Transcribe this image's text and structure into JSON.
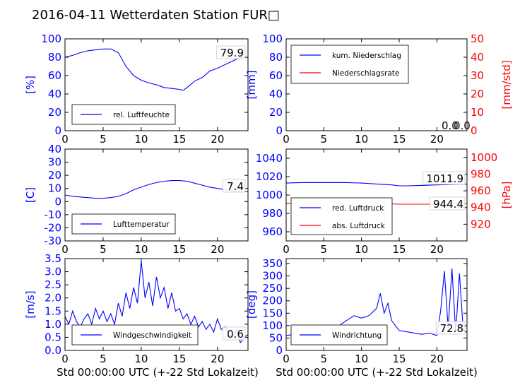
{
  "title": "2016-04-11 Wetterdaten Station FUR□",
  "xlabel": "Std 00:00:00 UTC (+-22 Std Lokalzeit)",
  "colors": {
    "blue": "#0000ff",
    "red": "#ff0000",
    "black": "#000000"
  },
  "chart_data": [
    {
      "type": "line",
      "ylabel": "[%]",
      "xlim": [
        0,
        24
      ],
      "ylim": [
        0,
        100
      ],
      "xticks": [
        0,
        5,
        10,
        15,
        20
      ],
      "yticks": [
        0,
        20,
        40,
        60,
        80,
        100
      ],
      "legend": [
        "rel. Luftfeuchte"
      ],
      "last_value_label": "79.9",
      "series": [
        {
          "name": "rel. Luftfeuchte",
          "color": "#0000ff",
          "x": [
            0,
            1,
            2,
            3,
            4,
            5,
            6,
            7,
            8,
            9,
            10,
            11,
            12,
            13,
            14,
            15,
            15.5,
            16,
            17,
            18,
            19,
            20,
            21,
            22,
            23,
            24
          ],
          "y": [
            80,
            82,
            85,
            87,
            88,
            89,
            89,
            85,
            70,
            60,
            55,
            52,
            50,
            47,
            46,
            45,
            44,
            47,
            54,
            58,
            65,
            68,
            72,
            76,
            80,
            79.9
          ]
        }
      ]
    },
    {
      "type": "line",
      "ylabel": "[mm]",
      "y2label": "[mm/std]",
      "xlim": [
        0,
        24
      ],
      "ylim": [
        0,
        100
      ],
      "y2lim": [
        0,
        50
      ],
      "xticks": [
        0,
        5,
        10,
        15,
        20
      ],
      "yticks": [
        0,
        20,
        40,
        60,
        80,
        100
      ],
      "y2ticks": [
        0,
        10,
        20,
        30,
        40,
        50
      ],
      "legend": [
        "kum. Niederschlag",
        "Niederschlagsrate"
      ],
      "value_labels": [
        "0.0",
        "0.0"
      ],
      "series": [
        {
          "name": "kum. Niederschlag",
          "color": "#0000ff",
          "x": [
            0,
            24
          ],
          "y": [
            0,
            0
          ]
        },
        {
          "name": "Niederschlagsrate",
          "color": "#ff0000",
          "axis": "y2",
          "x": [
            0,
            24
          ],
          "y": [
            0,
            0
          ]
        }
      ]
    },
    {
      "type": "line",
      "ylabel": "[C]",
      "xlim": [
        0,
        24
      ],
      "ylim": [
        -30,
        40
      ],
      "xticks": [
        0,
        5,
        10,
        15,
        20
      ],
      "yticks": [
        -30,
        -20,
        -10,
        0,
        10,
        20,
        30,
        40
      ],
      "legend": [
        "Lufttemperatur"
      ],
      "last_value_label": "7.4",
      "series": [
        {
          "name": "Lufttemperatur",
          "color": "#0000ff",
          "x": [
            0,
            1,
            2,
            3,
            4,
            5,
            6,
            7,
            8,
            9,
            10,
            11,
            12,
            13,
            14,
            15,
            16,
            17,
            18,
            19,
            20,
            21,
            22,
            23,
            24
          ],
          "y": [
            5,
            4,
            3.5,
            3,
            2.5,
            2.5,
            3,
            4,
            6,
            9,
            11,
            13,
            14.5,
            15.5,
            16,
            16,
            15.5,
            14,
            12.5,
            11,
            10,
            9,
            8,
            7.5,
            7.4
          ]
        }
      ]
    },
    {
      "type": "line",
      "ylabel": "",
      "y2label": "[hPa]",
      "xlim": [
        0,
        24
      ],
      "ylim": [
        950,
        1050
      ],
      "y2lim": [
        900,
        1010
      ],
      "xticks": [
        0,
        5,
        10,
        15,
        20
      ],
      "yticks": [
        960,
        980,
        1000,
        1020,
        1040
      ],
      "y2ticks": [
        920,
        940,
        960,
        980,
        1000
      ],
      "legend": [
        "red. Luftdruck",
        "abs. Luftdruck"
      ],
      "value_labels": [
        "1011.9",
        "944.4"
      ],
      "series": [
        {
          "name": "red. Luftdruck",
          "color": "#0000ff",
          "x": [
            0,
            2,
            4,
            6,
            8,
            10,
            12,
            14,
            15,
            16,
            18,
            20,
            22,
            24
          ],
          "y": [
            1013,
            1013.5,
            1013.5,
            1013.5,
            1013.5,
            1013,
            1012,
            1011,
            1010,
            1010,
            1010.5,
            1011,
            1011.5,
            1011.9
          ]
        },
        {
          "name": "abs. Luftdruck",
          "color": "#ff0000",
          "axis": "y2",
          "x": [
            0,
            4,
            8,
            12,
            15,
            18,
            20,
            24
          ],
          "y": [
            945,
            945.5,
            945.5,
            945,
            944,
            944,
            944,
            944.4
          ]
        }
      ]
    },
    {
      "type": "line",
      "ylabel": "[m/s]",
      "xlim": [
        0,
        24
      ],
      "ylim": [
        0,
        3.5
      ],
      "xticks": [
        0,
        5,
        10,
        15,
        20
      ],
      "yticks": [
        0.0,
        0.5,
        1.0,
        1.5,
        2.0,
        2.5,
        3.0,
        3.5
      ],
      "legend": [
        "Windgeschwindigkeit"
      ],
      "last_value_label": "0.6",
      "series": [
        {
          "name": "Windgeschwindigkeit",
          "color": "#0000ff",
          "x": [
            0,
            0.5,
            1,
            1.5,
            2,
            2.5,
            3,
            3.5,
            4,
            4.5,
            5,
            5.5,
            6,
            6.5,
            7,
            7.5,
            8,
            8.5,
            9,
            9.5,
            10,
            10.5,
            11,
            11.5,
            12,
            12.5,
            13,
            13.5,
            14,
            14.5,
            15,
            15.5,
            16,
            16.5,
            17,
            17.5,
            18,
            18.5,
            19,
            19.5,
            20,
            20.5,
            21,
            21.5,
            22,
            22.5,
            23,
            23.5,
            24
          ],
          "y": [
            1.3,
            1.0,
            1.5,
            1.1,
            0.9,
            1.2,
            1.4,
            1.0,
            1.6,
            1.2,
            1.5,
            1.1,
            1.4,
            1.0,
            1.8,
            1.3,
            2.2,
            1.6,
            2.4,
            1.8,
            3.4,
            2.0,
            2.6,
            1.7,
            2.8,
            2.0,
            2.4,
            1.6,
            2.2,
            1.5,
            1.6,
            1.2,
            1.4,
            1.0,
            1.3,
            0.9,
            1.1,
            0.8,
            1.0,
            0.7,
            1.2,
            0.8,
            0.9,
            0.6,
            0.5,
            0.8,
            0.3,
            0.5,
            0.6
          ]
        }
      ]
    },
    {
      "type": "line",
      "ylabel": "[deg]",
      "xlim": [
        0,
        24
      ],
      "ylim": [
        0,
        370
      ],
      "xticks": [
        0,
        5,
        10,
        15,
        20
      ],
      "yticks": [
        0,
        50,
        100,
        150,
        200,
        250,
        300,
        350
      ],
      "legend": [
        "Windrichtung"
      ],
      "last_value_label": "72.8",
      "series": [
        {
          "name": "Windrichtung",
          "color": "#0000ff",
          "x": [
            0,
            1,
            2,
            3,
            4,
            5,
            6,
            7,
            8,
            9,
            10,
            11,
            12,
            12.5,
            13,
            13.5,
            14,
            15,
            16,
            17,
            18,
            19,
            20,
            20.5,
            21,
            21.5,
            22,
            22.5,
            23,
            23.5,
            24
          ],
          "y": [
            60,
            65,
            70,
            60,
            70,
            80,
            90,
            100,
            120,
            140,
            130,
            140,
            170,
            230,
            150,
            190,
            120,
            80,
            75,
            70,
            65,
            70,
            60,
            160,
            320,
            90,
            330,
            70,
            310,
            80,
            72.8
          ]
        }
      ]
    }
  ]
}
